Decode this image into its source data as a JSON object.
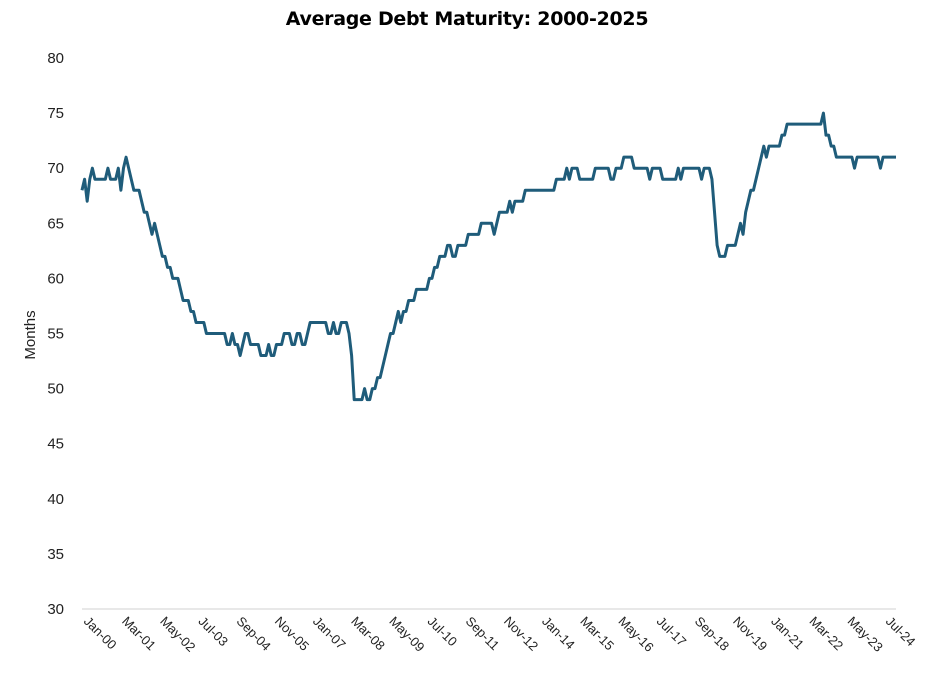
{
  "chart_data": {
    "type": "line",
    "title": "Average Debt Maturity: 2000-2025",
    "xlabel": "",
    "ylabel": "Months",
    "ylim": [
      30,
      80
    ],
    "yticks": [
      30,
      35,
      40,
      45,
      50,
      55,
      60,
      65,
      70,
      75,
      80
    ],
    "xtick_labels": [
      "Jan-00",
      "Mar-01",
      "May-02",
      "Jul-03",
      "Sep-04",
      "Nov-05",
      "Jan-07",
      "Mar-08",
      "May-09",
      "Jul-10",
      "Sep-11",
      "Nov-12",
      "Jan-14",
      "Mar-15",
      "May-16",
      "Jul-17",
      "Sep-18",
      "Nov-19",
      "Jan-21",
      "Mar-22",
      "May-23",
      "Jul-24"
    ],
    "grid": false,
    "legend": "none",
    "line_color": "#1f5c7a",
    "series": [
      {
        "values": [
          68,
          69,
          67,
          69,
          70,
          69,
          69,
          69,
          69,
          69,
          70,
          69,
          69,
          69,
          70,
          68,
          70,
          71,
          70,
          69,
          68,
          68,
          68,
          67,
          66,
          66,
          65,
          64,
          65,
          64,
          63,
          62,
          62,
          61,
          61,
          60,
          60,
          60,
          59,
          58,
          58,
          58,
          57,
          57,
          56,
          56,
          56,
          56,
          55,
          55,
          55,
          55,
          55,
          55,
          55,
          55,
          54,
          54,
          55,
          54,
          54,
          53,
          54,
          55,
          55,
          54,
          54,
          54,
          54,
          53,
          53,
          53,
          54,
          53,
          53,
          54,
          54,
          54,
          55,
          55,
          55,
          54,
          54,
          55,
          55,
          54,
          54,
          55,
          56,
          56,
          56,
          56,
          56,
          56,
          56,
          55,
          55,
          56,
          55,
          55,
          56,
          56,
          56,
          55,
          53,
          49,
          49,
          49,
          49,
          50,
          49,
          49,
          50,
          50,
          51,
          51,
          52,
          53,
          54,
          55,
          55,
          56,
          57,
          56,
          57,
          57,
          58,
          58,
          58,
          59,
          59,
          59,
          59,
          59,
          60,
          60,
          61,
          61,
          62,
          62,
          62,
          63,
          63,
          62,
          62,
          63,
          63,
          63,
          63,
          64,
          64,
          64,
          64,
          64,
          65,
          65,
          65,
          65,
          65,
          64,
          65,
          66,
          66,
          66,
          66,
          67,
          66,
          67,
          67,
          67,
          67,
          68,
          68,
          68,
          68,
          68,
          68,
          68,
          68,
          68,
          68,
          68,
          68,
          69,
          69,
          69,
          69,
          70,
          69,
          70,
          70,
          70,
          69,
          69,
          69,
          69,
          69,
          69,
          70,
          70,
          70,
          70,
          70,
          70,
          69,
          69,
          70,
          70,
          70,
          71,
          71,
          71,
          71,
          70,
          70,
          70,
          70,
          70,
          70,
          69,
          70,
          70,
          70,
          70,
          69,
          69,
          69,
          69,
          69,
          69,
          70,
          69,
          70,
          70,
          70,
          70,
          70,
          70,
          70,
          69,
          70,
          70,
          70,
          69,
          66,
          63,
          62,
          62,
          62,
          63,
          63,
          63,
          63,
          64,
          65,
          64,
          66,
          67,
          68,
          68,
          69,
          70,
          71,
          72,
          71,
          72,
          72,
          72,
          72,
          72,
          73,
          73,
          74,
          74,
          74,
          74,
          74,
          74,
          74,
          74,
          74,
          74,
          74,
          74,
          74,
          74,
          75,
          73,
          73,
          72,
          72,
          71,
          71,
          71,
          71,
          71,
          71,
          71,
          70,
          71,
          71,
          71,
          71,
          71,
          71,
          71,
          71,
          71,
          70,
          71,
          71,
          71,
          71,
          71,
          71
        ]
      }
    ]
  }
}
